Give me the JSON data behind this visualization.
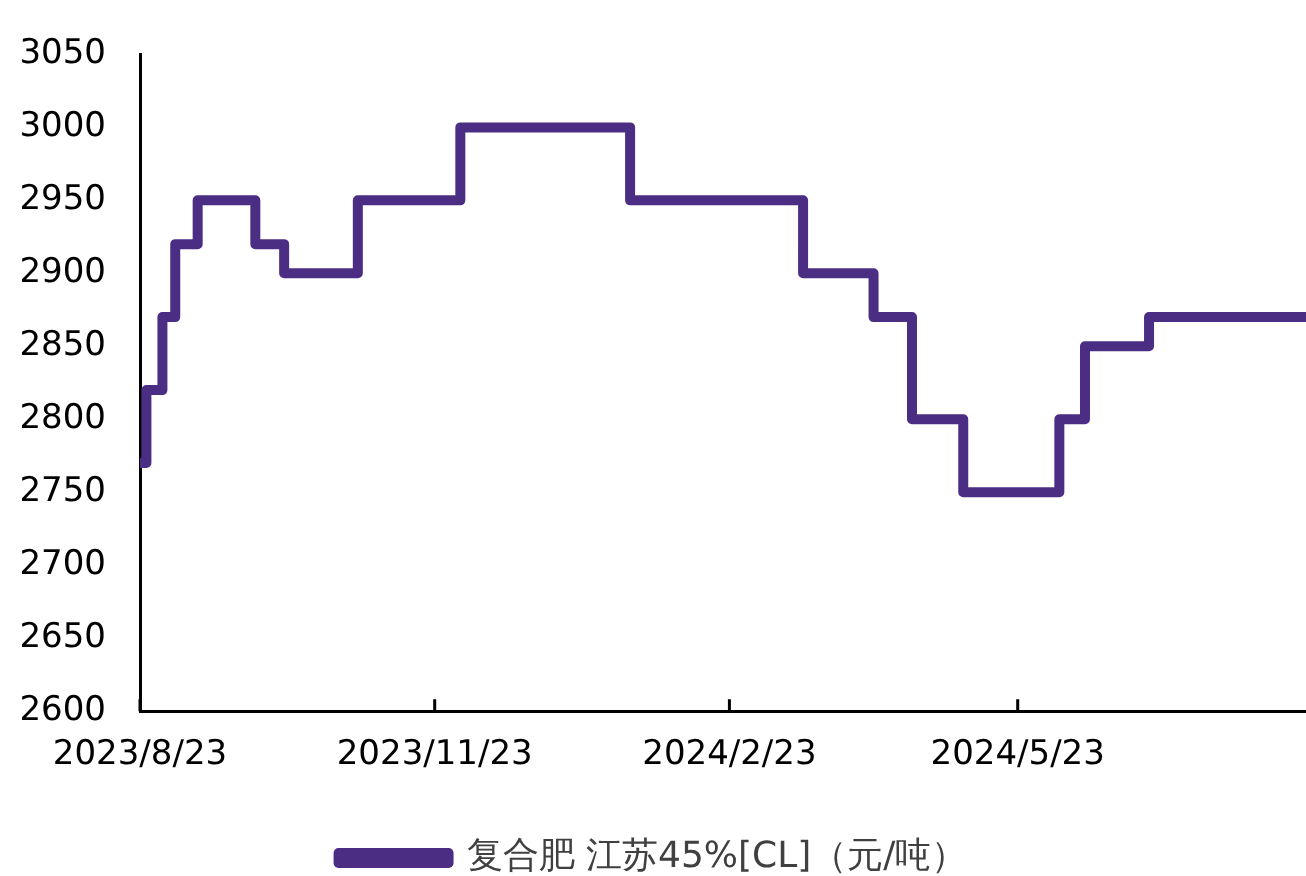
{
  "chart_data": {
    "type": "step",
    "x": [
      "2023-08-23",
      "2023-08-25",
      "2023-08-30",
      "2023-09-03",
      "2023-09-10",
      "2023-09-28",
      "2023-10-07",
      "2023-10-30",
      "2023-12-01",
      "2024-01-23",
      "2024-03-17",
      "2024-04-08",
      "2024-04-20",
      "2024-05-06",
      "2024-06-05",
      "2024-06-13",
      "2024-07-03",
      "2024-08-21"
    ],
    "series": [
      {
        "name": "复合肥 江苏45%[CL]（元/吨）",
        "color": "#4b2e83",
        "values": [
          2770,
          2820,
          2870,
          2920,
          2950,
          2920,
          2900,
          2950,
          3000,
          2950,
          2900,
          2870,
          2800,
          2750,
          2800,
          2850,
          2870,
          2870
        ]
      }
    ],
    "xlim": [
      "2023-08-23",
      "2024-08-21"
    ],
    "xticks": [
      {
        "value": "2023-08-23",
        "label": "2023/8/23"
      },
      {
        "value": "2023-11-23",
        "label": "2023/11/23"
      },
      {
        "value": "2024-02-23",
        "label": "2024/2/23"
      },
      {
        "value": "2024-05-23",
        "label": "2024/5/23"
      }
    ],
    "ylim": [
      2600,
      3050
    ],
    "yticks": [
      2600,
      2650,
      2700,
      2750,
      2800,
      2850,
      2900,
      2950,
      3000,
      3050
    ],
    "grid": false,
    "legend": "bottom",
    "marker": "none",
    "line_style": "solid"
  }
}
